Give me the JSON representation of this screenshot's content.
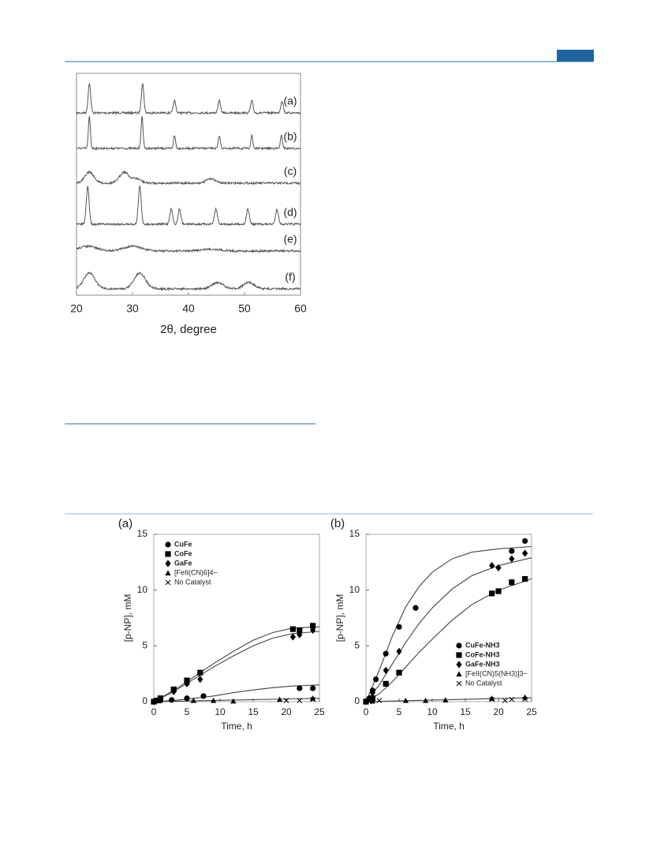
{
  "chart_data": [
    {
      "type": "spectra",
      "xlabel": "2θ, degree",
      "xlim": [
        20,
        60
      ],
      "xticks": [
        20,
        30,
        40,
        50,
        60
      ],
      "series": [
        {
          "name": "(a)",
          "color": "#555555",
          "peaks": [
            22.3,
            31.8,
            37.5,
            45.5,
            51.3,
            56.7
          ]
        },
        {
          "name": "(b)",
          "color": "#555555",
          "peaks": [
            22.3,
            31.7,
            37.5,
            45.5,
            51.3,
            56.6
          ]
        },
        {
          "name": "(c)",
          "color": "#555555",
          "peaks": [
            22.3,
            28.5,
            30.7,
            44.0
          ]
        },
        {
          "name": "(d)",
          "color": "#555555",
          "peaks": [
            22.0,
            31.3,
            36.9,
            38.4,
            44.9,
            50.6,
            55.8
          ]
        },
        {
          "name": "(e)",
          "color": "#555555",
          "peaks": [
            22.0,
            30.0,
            44.0
          ]
        },
        {
          "name": "(f)",
          "color": "#555555",
          "peaks": [
            22.3,
            31.3,
            45.2,
            50.8
          ]
        }
      ]
    },
    {
      "type": "scatter",
      "title": "(a)",
      "xlabel": "Time, h",
      "ylabel": "[p-NP], mM",
      "xlim": [
        0,
        25
      ],
      "xticks": [
        0,
        5,
        10,
        15,
        20,
        25
      ],
      "ylim": [
        0,
        15
      ],
      "yticks": [
        0,
        5,
        10,
        15
      ],
      "legend": "upper left",
      "series": [
        {
          "name": "CuFe",
          "color": "#000000",
          "marker": "circle",
          "x": [
            0,
            1,
            2.7,
            5,
            7.5,
            22,
            24
          ],
          "values": [
            0,
            0.1,
            0.15,
            0.3,
            0.5,
            1.2,
            1.2
          ]
        },
        {
          "name": "CoFe",
          "color": "#000000",
          "marker": "square",
          "x": [
            0,
            0.5,
            1,
            3,
            5,
            7,
            21,
            22,
            24
          ],
          "values": [
            0,
            0.1,
            0.3,
            1.1,
            1.9,
            2.6,
            6.5,
            6.4,
            6.8
          ]
        },
        {
          "name": "GaFe",
          "color": "#000000",
          "marker": "diamond",
          "x": [
            0,
            1,
            3,
            5,
            7,
            21,
            22,
            24
          ],
          "values": [
            0,
            0.2,
            0.9,
            1.6,
            2.0,
            5.8,
            6.0,
            6.4
          ]
        },
        {
          "name": "[FeII(CN)6]4−",
          "color": "#000000",
          "marker": "triangle",
          "x": [
            0,
            6,
            9,
            12,
            19,
            24
          ],
          "values": [
            0,
            0.1,
            0.1,
            0.05,
            0.2,
            0.3
          ]
        },
        {
          "name": "No Catalyst",
          "color": "#000000",
          "marker": "cross",
          "x": [
            20,
            22,
            24
          ],
          "values": [
            0.1,
            0.1,
            0.2
          ]
        }
      ],
      "fits": [
        {
          "color": "#444444",
          "x": [
            0,
            3,
            6,
            9,
            12,
            15,
            18,
            21,
            25
          ],
          "values": [
            0,
            1,
            2.2,
            3.4,
            4.5,
            5.5,
            6.2,
            6.6,
            6.7
          ]
        },
        {
          "color": "#444444",
          "x": [
            0,
            3,
            6,
            9,
            12,
            15,
            18,
            21,
            25
          ],
          "values": [
            0,
            0.9,
            2,
            3.1,
            4.1,
            5,
            5.7,
            6.1,
            6.3
          ]
        },
        {
          "color": "#444444",
          "x": [
            0,
            3,
            6,
            9,
            12,
            15,
            18,
            21,
            25
          ],
          "values": [
            0,
            0.1,
            0.3,
            0.5,
            0.8,
            1.05,
            1.25,
            1.4,
            1.5
          ]
        },
        {
          "color": "#444444",
          "x": [
            0,
            25
          ],
          "values": [
            0,
            0.3
          ]
        }
      ]
    },
    {
      "type": "scatter",
      "title": "(b)",
      "xlabel": "Time, h",
      "ylabel": "[p-NP], mM",
      "xlim": [
        0,
        25
      ],
      "xticks": [
        0,
        5,
        10,
        15,
        20,
        25
      ],
      "ylim": [
        0,
        15
      ],
      "yticks": [
        0,
        5,
        10,
        15
      ],
      "legend": "lower right",
      "series": [
        {
          "name": "CuFe-NH3",
          "color": "#000000",
          "marker": "circle",
          "x": [
            0,
            0.5,
            1,
            1.5,
            3,
            5,
            7.5,
            22,
            24
          ],
          "values": [
            0,
            0.3,
            1,
            2,
            4.3,
            6.7,
            8.4,
            13.5,
            14.4
          ]
        },
        {
          "name": "CoFe-NH3",
          "color": "#000000",
          "marker": "square",
          "x": [
            0,
            1,
            3,
            5,
            19,
            20,
            22,
            24
          ],
          "values": [
            0,
            0.3,
            1.6,
            2.6,
            9.7,
            9.9,
            10.7,
            11.0
          ]
        },
        {
          "name": "GaFe-NH3",
          "color": "#000000",
          "marker": "diamond",
          "x": [
            0,
            1,
            3,
            5,
            19,
            20,
            22,
            24
          ],
          "values": [
            0,
            0.8,
            2.8,
            4.5,
            12.2,
            12.0,
            12.8,
            13.3
          ]
        },
        {
          "name": "[FeII(CN)5(NH3)]3−",
          "color": "#000000",
          "marker": "triangle",
          "x": [
            0,
            1,
            6,
            9,
            12,
            19,
            24
          ],
          "values": [
            0,
            0.05,
            0.1,
            0.1,
            0.15,
            0.3,
            0.4
          ]
        },
        {
          "name": "No Catalyst",
          "color": "#000000",
          "marker": "cross",
          "x": [
            0.5,
            1,
            2,
            19,
            21,
            22,
            24
          ],
          "values": [
            0,
            0.1,
            0.1,
            0.2,
            0.1,
            0.2,
            0.2
          ]
        }
      ],
      "fits": [
        {
          "color": "#444444",
          "x": [
            0,
            2,
            4,
            6,
            8,
            10,
            13,
            16,
            20,
            25
          ],
          "values": [
            0,
            2.8,
            5.9,
            8.5,
            10.3,
            11.6,
            12.8,
            13.4,
            13.7,
            13.9
          ]
        },
        {
          "color": "#444444",
          "x": [
            0,
            2,
            4,
            6,
            8,
            10,
            13,
            16,
            20,
            25
          ],
          "values": [
            0,
            0.7,
            1.8,
            3.1,
            4.4,
            5.6,
            7.3,
            8.7,
            10.0,
            11.0
          ]
        },
        {
          "color": "#444444",
          "x": [
            0,
            2,
            4,
            6,
            8,
            10,
            13,
            16,
            20,
            25
          ],
          "values": [
            0,
            1.5,
            3.4,
            5.3,
            7.0,
            8.4,
            10.1,
            11.3,
            12.2,
            12.9
          ]
        },
        {
          "color": "#444444",
          "x": [
            0,
            25
          ],
          "values": [
            0,
            0.35
          ]
        }
      ]
    }
  ]
}
